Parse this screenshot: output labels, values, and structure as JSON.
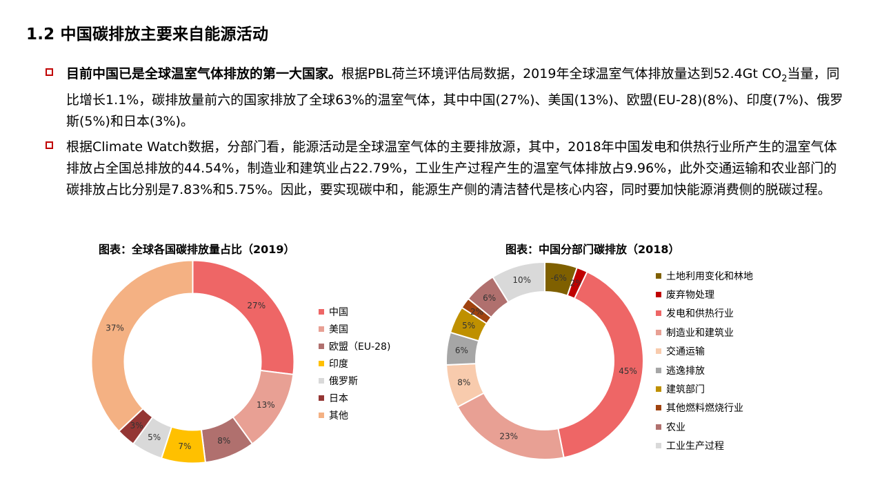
{
  "page": {
    "title": "1.2 中国碳排放主要来自能源活动"
  },
  "bullets": [
    {
      "bold": "目前中国已是全球温室气体排放的第一大国家。",
      "text_before_sub": "根据PBL荷兰环境评估局数据，2019年全球温室气体排放量达到52.4Gt CO",
      "sub": "2",
      "text_after_sub": "当量，同比增长1.1%，碳排放量前六的国家排放了全球63%的温室气体，其中中国(27%)、美国(13%)、欧盟(EU-28)(8%)、印度(7%)、俄罗斯(5%)和日本(3%)。"
    },
    {
      "bold": "",
      "text_before_sub": "根据Climate Watch数据，分部门看，能源活动是全球温室气体的主要排放源，其中，2018年中国发电和供热行业所产生的温室气体排放占全国总排放的44.54%，制造业和建筑业占22.79%，工业生产过程产生的温室气体排放占9.96%，此外交通运输和农业部门的碳排放占比分别是7.83%和5.75%。因此，要实现碳中和，能源生产侧的清洁替代是核心内容，同时要加快能源消费侧的脱碳过程。",
      "sub": "",
      "text_after_sub": ""
    }
  ],
  "chart_data": [
    {
      "type": "pie",
      "title": "图表：全球各国碳排放量占比（2019）",
      "categories": [
        "中国",
        "美国",
        "欧盟（EU-28)",
        "印度",
        "俄罗斯",
        "日本",
        "其他"
      ],
      "values": [
        27,
        13,
        8,
        7,
        5,
        3,
        37
      ],
      "labels": [
        "27%",
        "13%",
        "8%",
        "7%",
        "5%",
        "3%",
        "37%"
      ],
      "colors": [
        "#ee6666",
        "#e8a094",
        "#b0706e",
        "#ffc000",
        "#d9d9d9",
        "#943634",
        "#f4b183"
      ],
      "legend": "right"
    },
    {
      "type": "pie",
      "title": "图表：中国分部门碳排放（2018）",
      "categories": [
        "土地利用变化和林地",
        "废弃物处理",
        "发电和供热行业",
        "制造业和建筑业",
        "交通运输",
        "逃逸排放",
        "建筑部门",
        "其他燃料燃烧行业",
        "农业",
        "工业生产过程"
      ],
      "values": [
        -6,
        2,
        45,
        23,
        8,
        6,
        5,
        2,
        6,
        10
      ],
      "labels": [
        "-6%",
        "2%",
        "45%",
        "23%",
        "8%",
        "6%",
        "5%",
        "2%",
        "6%",
        "10%"
      ],
      "colors": [
        "#7f6000",
        "#c00000",
        "#ee6666",
        "#e8a094",
        "#f8cbad",
        "#a6a6a6",
        "#bf9000",
        "#a0430f",
        "#b0706e",
        "#d9d9d9"
      ],
      "legend": "right"
    }
  ]
}
